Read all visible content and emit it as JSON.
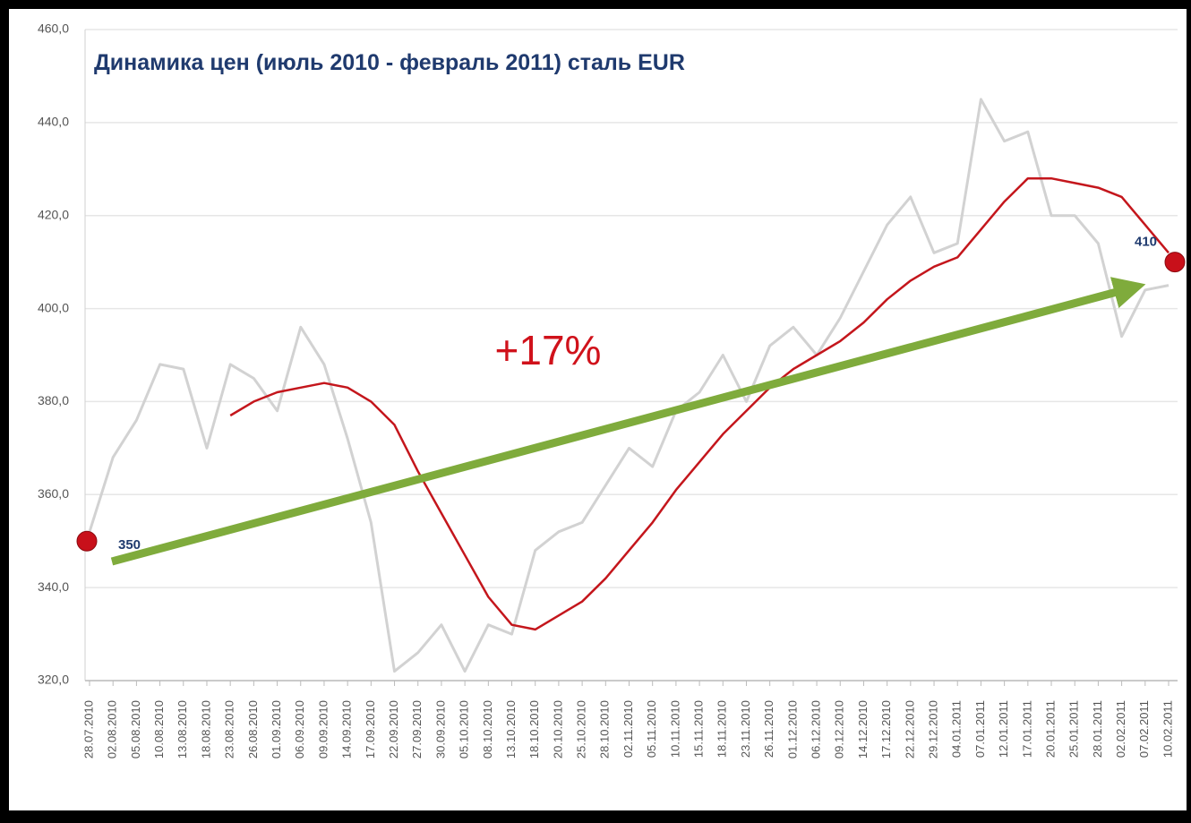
{
  "chart_data": {
    "type": "line",
    "title": "Динамика цен (июль 2010 - февраль 2011) сталь EUR",
    "categories": [
      "28.07.2010",
      "02.08.2010",
      "05.08.2010",
      "10.08.2010",
      "13.08.2010",
      "18.08.2010",
      "23.08.2010",
      "26.08.2010",
      "01.09.2010",
      "06.09.2010",
      "09.09.2010",
      "14.09.2010",
      "17.09.2010",
      "22.09.2010",
      "27.09.2010",
      "30.09.2010",
      "05.10.2010",
      "08.10.2010",
      "13.10.2010",
      "18.10.2010",
      "20.10.2010",
      "25.10.2010",
      "28.10.2010",
      "02.11.2010",
      "05.11.2010",
      "10.11.2010",
      "15.11.2010",
      "18.11.2010",
      "23.11.2010",
      "26.11.2010",
      "01.12.2010",
      "06.12.2010",
      "09.12.2010",
      "14.12.2010",
      "17.12.2010",
      "22.12.2010",
      "29.12.2010",
      "04.01.2011",
      "07.01.2011",
      "12.01.2011",
      "17.01.2011",
      "20.01.2011",
      "25.01.2011",
      "28.01.2011",
      "02.02.2011",
      "07.02.2011",
      "10.02.2011"
    ],
    "series": [
      {
        "color": "#d2d2d2",
        "values": [
          352,
          368,
          376,
          388,
          387,
          370,
          388,
          385,
          378,
          396,
          388,
          372,
          354,
          322,
          326,
          332,
          322,
          332,
          330,
          348,
          352,
          354,
          362,
          370,
          366,
          378,
          382,
          390,
          380,
          392,
          396,
          390,
          398,
          408,
          418,
          424,
          412,
          414,
          445,
          436,
          438,
          420,
          420,
          414,
          394,
          404,
          405
        ]
      },
      {
        "color": "#c4161c",
        "values": [
          null,
          null,
          null,
          null,
          null,
          null,
          377,
          380,
          382,
          383,
          384,
          383,
          380,
          375,
          365,
          356,
          347,
          338,
          332,
          331,
          334,
          337,
          342,
          348,
          354,
          361,
          367,
          373,
          378,
          383,
          387,
          390,
          393,
          397,
          402,
          406,
          409,
          411,
          417,
          423,
          428,
          428,
          427,
          426,
          424,
          418,
          412
        ]
      }
    ],
    "ylim": [
      320,
      460
    ],
    "yticks": [
      {
        "value": 320,
        "label": "320,0"
      },
      {
        "value": 340,
        "label": "340,0"
      },
      {
        "value": 360,
        "label": "360,0"
      },
      {
        "value": 380,
        "label": "380,0"
      },
      {
        "value": 400,
        "label": "400,0"
      },
      {
        "value": 420,
        "label": "420,0"
      },
      {
        "value": 440,
        "label": "440,0"
      },
      {
        "value": 460,
        "label": "460,0"
      }
    ],
    "grid": true,
    "annotations": {
      "change": "+17%"
    },
    "markers": [
      {
        "label": "350",
        "value": 350,
        "color": "#c8101a"
      },
      {
        "label": "410",
        "value": 410,
        "color": "#c8101a"
      }
    ]
  }
}
